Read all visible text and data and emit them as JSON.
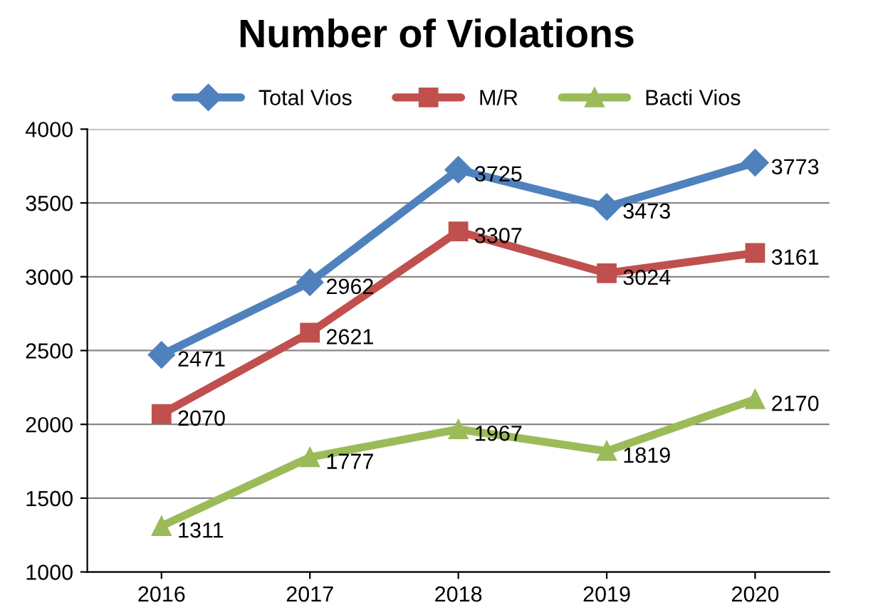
{
  "chart_data": {
    "type": "line",
    "title": "Number of Violations",
    "categories": [
      "2016",
      "2017",
      "2018",
      "2019",
      "2020"
    ],
    "series": [
      {
        "name": "Total Vios",
        "color": "#4f81bd",
        "marker": "diamond",
        "values": [
          2471,
          2962,
          3725,
          3473,
          3773
        ]
      },
      {
        "name": "M/R",
        "color": "#c0504d",
        "marker": "square",
        "values": [
          2070,
          2621,
          3307,
          3024,
          3161
        ]
      },
      {
        "name": "Bacti Vios",
        "color": "#9bbb59",
        "marker": "triangle",
        "values": [
          1311,
          1777,
          1967,
          1819,
          2170
        ]
      }
    ],
    "ylim": [
      1000,
      4000
    ],
    "yticks": [
      1000,
      1500,
      2000,
      2500,
      3000,
      3500,
      4000
    ],
    "grid": "y",
    "legend": "top",
    "data_labels": true,
    "line_style": "solid"
  }
}
